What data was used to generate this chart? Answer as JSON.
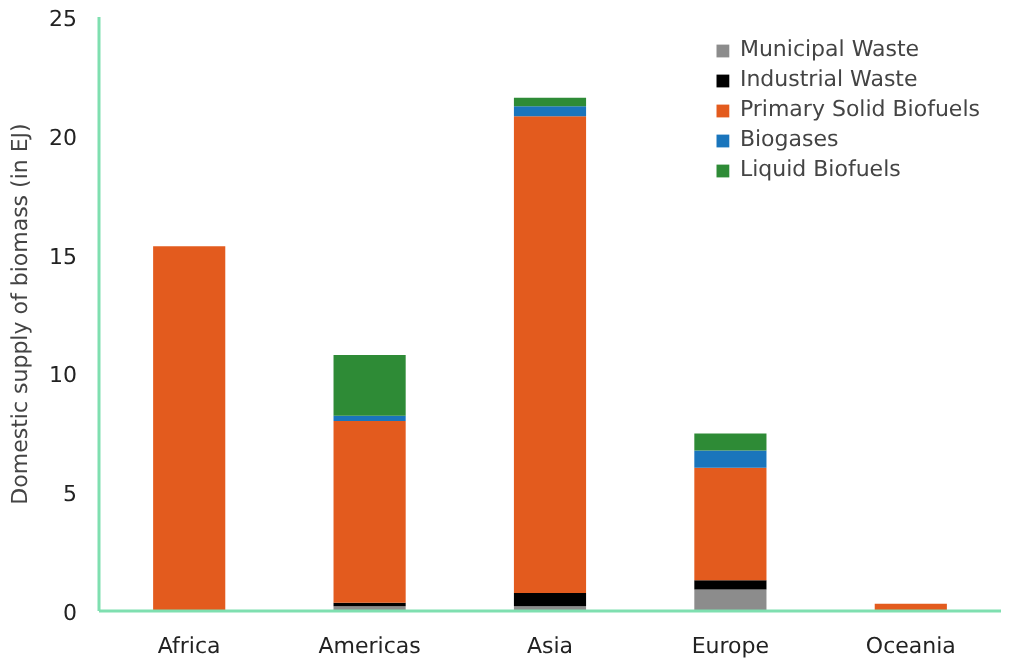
{
  "chart_data": {
    "type": "bar",
    "stacked": true,
    "ylabel": "Domestic supply of biomass (in EJ)",
    "categories": [
      "Africa",
      "Americas",
      "Asia",
      "Europe",
      "Oceania"
    ],
    "series": [
      {
        "name": "Municipal Waste",
        "color": "#8c8c8c",
        "values": [
          0,
          0.2,
          0.2,
          0.9,
          0
        ]
      },
      {
        "name": "Industrial Waste",
        "color": "#000000",
        "values": [
          0,
          0.15,
          0.56,
          0.39,
          0
        ]
      },
      {
        "name": "Primary Solid Biofuels",
        "color": "#e35b1e",
        "values": [
          15.35,
          7.65,
          20.06,
          4.74,
          0.3
        ]
      },
      {
        "name": "Biogases",
        "color": "#1a75bc",
        "values": [
          0,
          0.22,
          0.42,
          0.73,
          0
        ]
      },
      {
        "name": "Liquid Biofuels",
        "color": "#2e8b36",
        "values": [
          0,
          2.55,
          0.36,
          0.71,
          0
        ]
      }
    ],
    "ylim": [
      0,
      25
    ],
    "yticks": [
      0,
      5,
      10,
      15,
      20,
      25
    ],
    "grid": false,
    "legend": "top right"
  }
}
